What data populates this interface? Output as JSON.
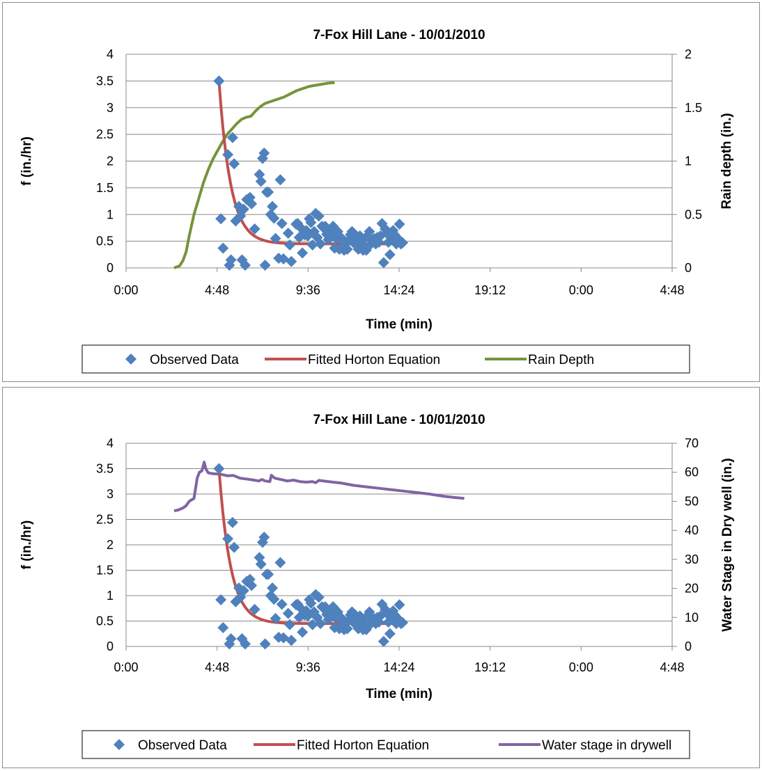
{
  "charts": [
    {
      "type": "scatter",
      "title": "7-Fox Hill Lane - 10/01/2010",
      "xlabel": "Time (min)",
      "ylabel_left": "f (in./hr)",
      "ylabel_right": "Rain depth (in.)",
      "x_ticks": [
        "0:00",
        "4:48",
        "9:36",
        "14:24",
        "19:12",
        "0:00",
        "4:48"
      ],
      "x_range_minutes": [
        0,
        1728
      ],
      "y_left": {
        "min": 0,
        "max": 4,
        "ticks": [
          "0",
          "0.5",
          "1",
          "1.5",
          "2",
          "2.5",
          "3",
          "3.5",
          "4"
        ]
      },
      "y_right": {
        "min": 0,
        "max": 2,
        "ticks": [
          "0",
          "0.5",
          "1",
          "1.5",
          "2"
        ]
      },
      "grid": "horizontal",
      "legend": {
        "placement": "bottom",
        "entries": [
          "Observed Data",
          "Fitted Horton Equation",
          "Rain Depth"
        ]
      },
      "secondary_line": {
        "name": "Rain Depth",
        "color": "#77933c"
      }
    },
    {
      "type": "scatter",
      "title": "7-Fox Hill Lane - 10/01/2010",
      "xlabel": "Time (min)",
      "ylabel_left": "f (in./hr)",
      "ylabel_right": "Water Stage in Dry well (in.)",
      "x_ticks": [
        "0:00",
        "4:48",
        "9:36",
        "14:24",
        "19:12",
        "0:00",
        "4:48"
      ],
      "x_range_minutes": [
        0,
        1728
      ],
      "y_left": {
        "min": 0,
        "max": 4,
        "ticks": [
          "0",
          "0.5",
          "1",
          "1.5",
          "2",
          "2.5",
          "3",
          "3.5",
          "4"
        ]
      },
      "y_right": {
        "min": 0,
        "max": 70,
        "ticks": [
          "0",
          "10",
          "20",
          "30",
          "40",
          "50",
          "60",
          "70"
        ]
      },
      "grid": "horizontal",
      "legend": {
        "placement": "bottom",
        "entries": [
          "Observed Data",
          "Fitted Horton Equation",
          "Water stage in drywell"
        ]
      },
      "secondary_line": {
        "name": "Water stage in drywell",
        "color": "#8064a2"
      }
    }
  ],
  "colors": {
    "observed": "#4f81bd",
    "horton": "#c0504d",
    "rain": "#77933c",
    "stage": "#8064a2"
  },
  "chart_data": [
    {
      "type": "scatter",
      "title": "7-Fox Hill Lane - 10/01/2010",
      "xlabel": "Time (min)",
      "ylabel": "f (in./hr)",
      "ylabel_right": "Rain depth (in.)",
      "x_units": "minutes",
      "xlim": [
        0,
        1728
      ],
      "ylim": [
        0,
        4
      ],
      "ylim_right": [
        0,
        2
      ],
      "series": [
        {
          "name": "Observed Data",
          "marker": "diamond",
          "axis": "left",
          "points": [
            [
              294,
              3.5
            ],
            [
              300,
              0.92
            ],
            [
              307,
              0.37
            ],
            [
              322,
              2.12
            ],
            [
              327,
              0.05
            ],
            [
              332,
              0.15
            ],
            [
              337,
              2.44
            ],
            [
              342,
              1.95
            ],
            [
              347,
              0.88
            ],
            [
              357,
              1.15
            ],
            [
              362,
              0.97
            ],
            [
              367,
              0.15
            ],
            [
              372,
              1.1
            ],
            [
              377,
              0.05
            ],
            [
              382,
              1.28
            ],
            [
              392,
              1.32
            ],
            [
              397,
              1.2
            ],
            [
              407,
              0.73
            ],
            [
              422,
              1.75
            ],
            [
              427,
              1.62
            ],
            [
              432,
              2.05
            ],
            [
              437,
              2.15
            ],
            [
              440,
              0.05
            ],
            [
              445,
              1.42
            ],
            [
              450,
              1.42
            ],
            [
              458,
              1.0
            ],
            [
              463,
              1.15
            ],
            [
              468,
              0.93
            ],
            [
              473,
              0.55
            ],
            [
              483,
              0.18
            ],
            [
              488,
              1.65
            ],
            [
              493,
              0.83
            ],
            [
              498,
              0.17
            ],
            [
              513,
              0.65
            ],
            [
              518,
              0.43
            ],
            [
              523,
              0.12
            ],
            [
              538,
              0.82
            ],
            [
              543,
              0.83
            ],
            [
              548,
              0.57
            ],
            [
              553,
              0.75
            ],
            [
              558,
              0.28
            ],
            [
              565,
              0.62
            ],
            [
              570,
              0.7
            ],
            [
              575,
              0.6
            ],
            [
              580,
              0.92
            ],
            [
              585,
              0.85
            ],
            [
              590,
              0.43
            ],
            [
              595,
              0.68
            ],
            [
              600,
              1.02
            ],
            [
              605,
              0.57
            ],
            [
              610,
              0.97
            ],
            [
              615,
              0.45
            ],
            [
              620,
              0.78
            ],
            [
              625,
              0.75
            ],
            [
              630,
              0.78
            ],
            [
              635,
              0.63
            ],
            [
              640,
              0.53
            ],
            [
              645,
              0.7
            ],
            [
              650,
              0.62
            ],
            [
              655,
              0.78
            ],
            [
              660,
              0.37
            ],
            [
              665,
              0.55
            ],
            [
              670,
              0.68
            ],
            [
              675,
              0.35
            ],
            [
              680,
              0.57
            ],
            [
              685,
              0.5
            ],
            [
              690,
              0.33
            ],
            [
              695,
              0.45
            ],
            [
              700,
              0.35
            ],
            [
              705,
              0.52
            ],
            [
              710,
              0.62
            ],
            [
              715,
              0.68
            ],
            [
              720,
              0.47
            ],
            [
              725,
              0.62
            ],
            [
              730,
              0.55
            ],
            [
              735,
              0.35
            ],
            [
              740,
              0.6
            ],
            [
              745,
              0.45
            ],
            [
              750,
              0.33
            ],
            [
              755,
              0.55
            ],
            [
              760,
              0.33
            ],
            [
              765,
              0.6
            ],
            [
              770,
              0.68
            ],
            [
              775,
              0.45
            ],
            [
              780,
              0.52
            ],
            [
              785,
              0.55
            ],
            [
              790,
              0.45
            ],
            [
              795,
              0.57
            ],
            [
              800,
              0.48
            ],
            [
              805,
              0.6
            ],
            [
              810,
              0.83
            ],
            [
              815,
              0.1
            ],
            [
              820,
              0.73
            ],
            [
              825,
              0.65
            ],
            [
              830,
              0.48
            ],
            [
              835,
              0.25
            ],
            [
              840,
              0.55
            ],
            [
              845,
              0.7
            ],
            [
              850,
              0.62
            ],
            [
              855,
              0.45
            ],
            [
              860,
              0.55
            ],
            [
              865,
              0.82
            ],
            [
              870,
              0.45
            ],
            [
              875,
              0.47
            ]
          ]
        },
        {
          "name": "Fitted Horton Equation",
          "axis": "left",
          "model": {
            "f0": 3.5,
            "fc": 0.45,
            "k_per_min": 0.027,
            "t0": 294,
            "t_end": 875
          }
        },
        {
          "name": "Rain Depth",
          "axis": "right",
          "points": [
            [
              152,
              0
            ],
            [
              170,
              0.02
            ],
            [
              180,
              0.07
            ],
            [
              190,
              0.15
            ],
            [
              200,
              0.3
            ],
            [
              215,
              0.5
            ],
            [
              230,
              0.65
            ],
            [
              245,
              0.8
            ],
            [
              260,
              0.92
            ],
            [
              275,
              1.02
            ],
            [
              290,
              1.1
            ],
            [
              305,
              1.18
            ],
            [
              320,
              1.25
            ],
            [
              335,
              1.3
            ],
            [
              350,
              1.35
            ],
            [
              365,
              1.39
            ],
            [
              380,
              1.41
            ],
            [
              395,
              1.42
            ],
            [
              410,
              1.47
            ],
            [
              425,
              1.51
            ],
            [
              440,
              1.54
            ],
            [
              460,
              1.56
            ],
            [
              480,
              1.58
            ],
            [
              500,
              1.6
            ],
            [
              520,
              1.63
            ],
            [
              540,
              1.66
            ],
            [
              560,
              1.68
            ],
            [
              580,
              1.7
            ],
            [
              600,
              1.71
            ],
            [
              620,
              1.72
            ],
            [
              640,
              1.73
            ],
            [
              660,
              1.735
            ]
          ]
        }
      ]
    },
    {
      "type": "scatter",
      "title": "7-Fox Hill Lane - 10/01/2010",
      "xlabel": "Time (min)",
      "ylabel": "f (in./hr)",
      "ylabel_right": "Water Stage in Dry well (in.)",
      "x_units": "minutes",
      "xlim": [
        0,
        1728
      ],
      "ylim": [
        0,
        4
      ],
      "ylim_right": [
        0,
        70
      ],
      "series": [
        {
          "name": "Observed Data",
          "marker": "diamond",
          "axis": "left",
          "points": "same as chart 1"
        },
        {
          "name": "Fitted Horton Equation",
          "axis": "left",
          "model": {
            "f0": 3.5,
            "fc": 0.45,
            "k_per_min": 0.027,
            "t0": 294,
            "t_end": 875
          }
        },
        {
          "name": "Water stage in drywell",
          "axis": "right",
          "points": [
            [
              152,
              46.7
            ],
            [
              165,
              47
            ],
            [
              180,
              47.7
            ],
            [
              190,
              48.5
            ],
            [
              200,
              50
            ],
            [
              215,
              51
            ],
            [
              225,
              58
            ],
            [
              232,
              60
            ],
            [
              240,
              60.5
            ],
            [
              247,
              63.5
            ],
            [
              253,
              61
            ],
            [
              260,
              59.8
            ],
            [
              275,
              59.5
            ],
            [
              300,
              59.3
            ],
            [
              320,
              58.8
            ],
            [
              340,
              58.9
            ],
            [
              360,
              58
            ],
            [
              380,
              57.7
            ],
            [
              400,
              57.4
            ],
            [
              420,
              57
            ],
            [
              430,
              57.5
            ],
            [
              440,
              57
            ],
            [
              455,
              56.8
            ],
            [
              460,
              59
            ],
            [
              470,
              58
            ],
            [
              490,
              57.5
            ],
            [
              510,
              57
            ],
            [
              530,
              57.3
            ],
            [
              550,
              56.8
            ],
            [
              570,
              56.6
            ],
            [
              590,
              56.8
            ],
            [
              600,
              56.4
            ],
            [
              610,
              57.2
            ],
            [
              640,
              56.8
            ],
            [
              680,
              56.3
            ],
            [
              720,
              55.5
            ],
            [
              760,
              55
            ],
            [
              800,
              54.5
            ],
            [
              840,
              54
            ],
            [
              880,
              53.5
            ],
            [
              920,
              53
            ],
            [
              960,
              52.5
            ],
            [
              1000,
              51.8
            ],
            [
              1040,
              51.3
            ],
            [
              1070,
              51
            ]
          ]
        }
      ]
    }
  ]
}
